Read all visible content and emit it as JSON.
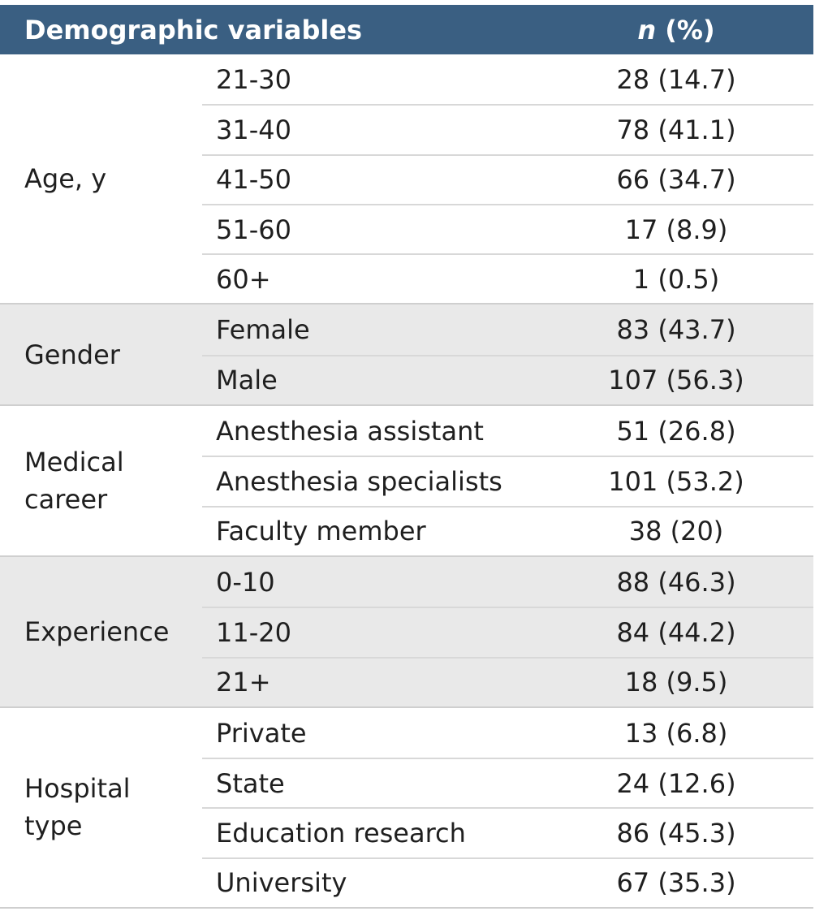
{
  "header": {
    "variables": "Demographic variables",
    "n": "n",
    "pct": " (%)"
  },
  "groups": [
    {
      "label": "Age, y",
      "rows": [
        {
          "category": "21-30",
          "value": "28 (14.7)"
        },
        {
          "category": "31-40",
          "value": "78 (41.1)"
        },
        {
          "category": "41-50",
          "value": "66 (34.7)"
        },
        {
          "category": "51-60",
          "value": "17 (8.9)"
        },
        {
          "category": "60+",
          "value": "1 (0.5)"
        }
      ]
    },
    {
      "label": "Gender",
      "rows": [
        {
          "category": "Female",
          "value": "83 (43.7)"
        },
        {
          "category": "Male",
          "value": "107 (56.3)"
        }
      ]
    },
    {
      "label": "Medical\ncareer",
      "rows": [
        {
          "category": "Anesthesia assistant",
          "value": "51 (26.8)"
        },
        {
          "category": "Anesthesia specialists",
          "value": "101 (53.2)"
        },
        {
          "category": "Faculty member",
          "value": "38 (20)"
        }
      ]
    },
    {
      "label": "Experience",
      "rows": [
        {
          "category": "0-10",
          "value": "88 (46.3)"
        },
        {
          "category": "11-20",
          "value": "84 (44.2)"
        },
        {
          "category": "21+",
          "value": "18 (9.5)"
        }
      ]
    },
    {
      "label": "Hospital\ntype",
      "rows": [
        {
          "category": "Private",
          "value": "13 (6.8)"
        },
        {
          "category": "State",
          "value": "24 (12.6)"
        },
        {
          "category": "Education research",
          "value": "86 (45.3)"
        },
        {
          "category": "University",
          "value": "67 (35.3)"
        }
      ]
    }
  ]
}
